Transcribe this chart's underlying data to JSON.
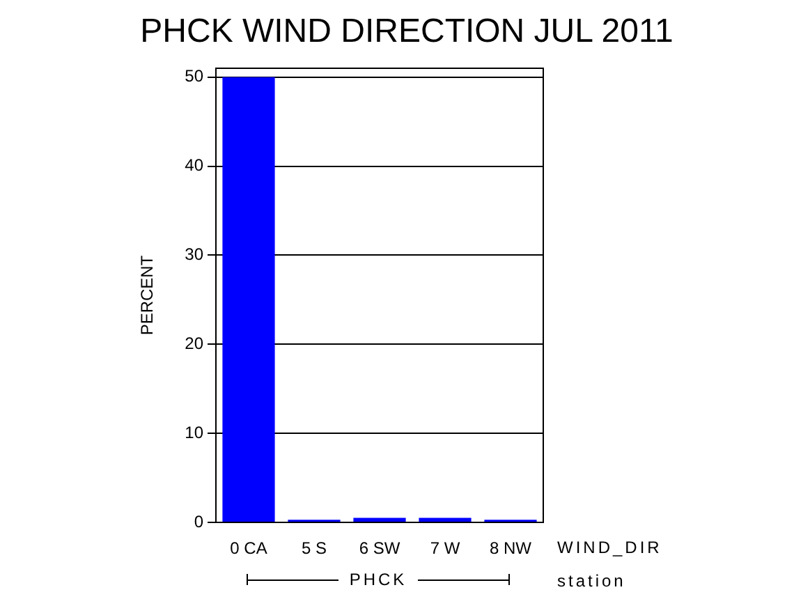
{
  "chart_data": {
    "type": "bar",
    "title": "PHCK WIND DIRECTION JUL 2011",
    "ylabel": "PERCENT",
    "xlabel": "WIND_DIR",
    "categories": [
      "0 CA",
      "5 S",
      "6 SW",
      "7 W",
      "8 NW"
    ],
    "values": [
      50,
      0.3,
      0.5,
      0.5,
      0.3
    ],
    "color": "#0000ff",
    "ylim": [
      0,
      51
    ],
    "yticks": [
      0,
      10,
      20,
      30,
      40,
      50
    ],
    "grid": "y",
    "annotations": [
      "PHCK",
      "station"
    ]
  }
}
